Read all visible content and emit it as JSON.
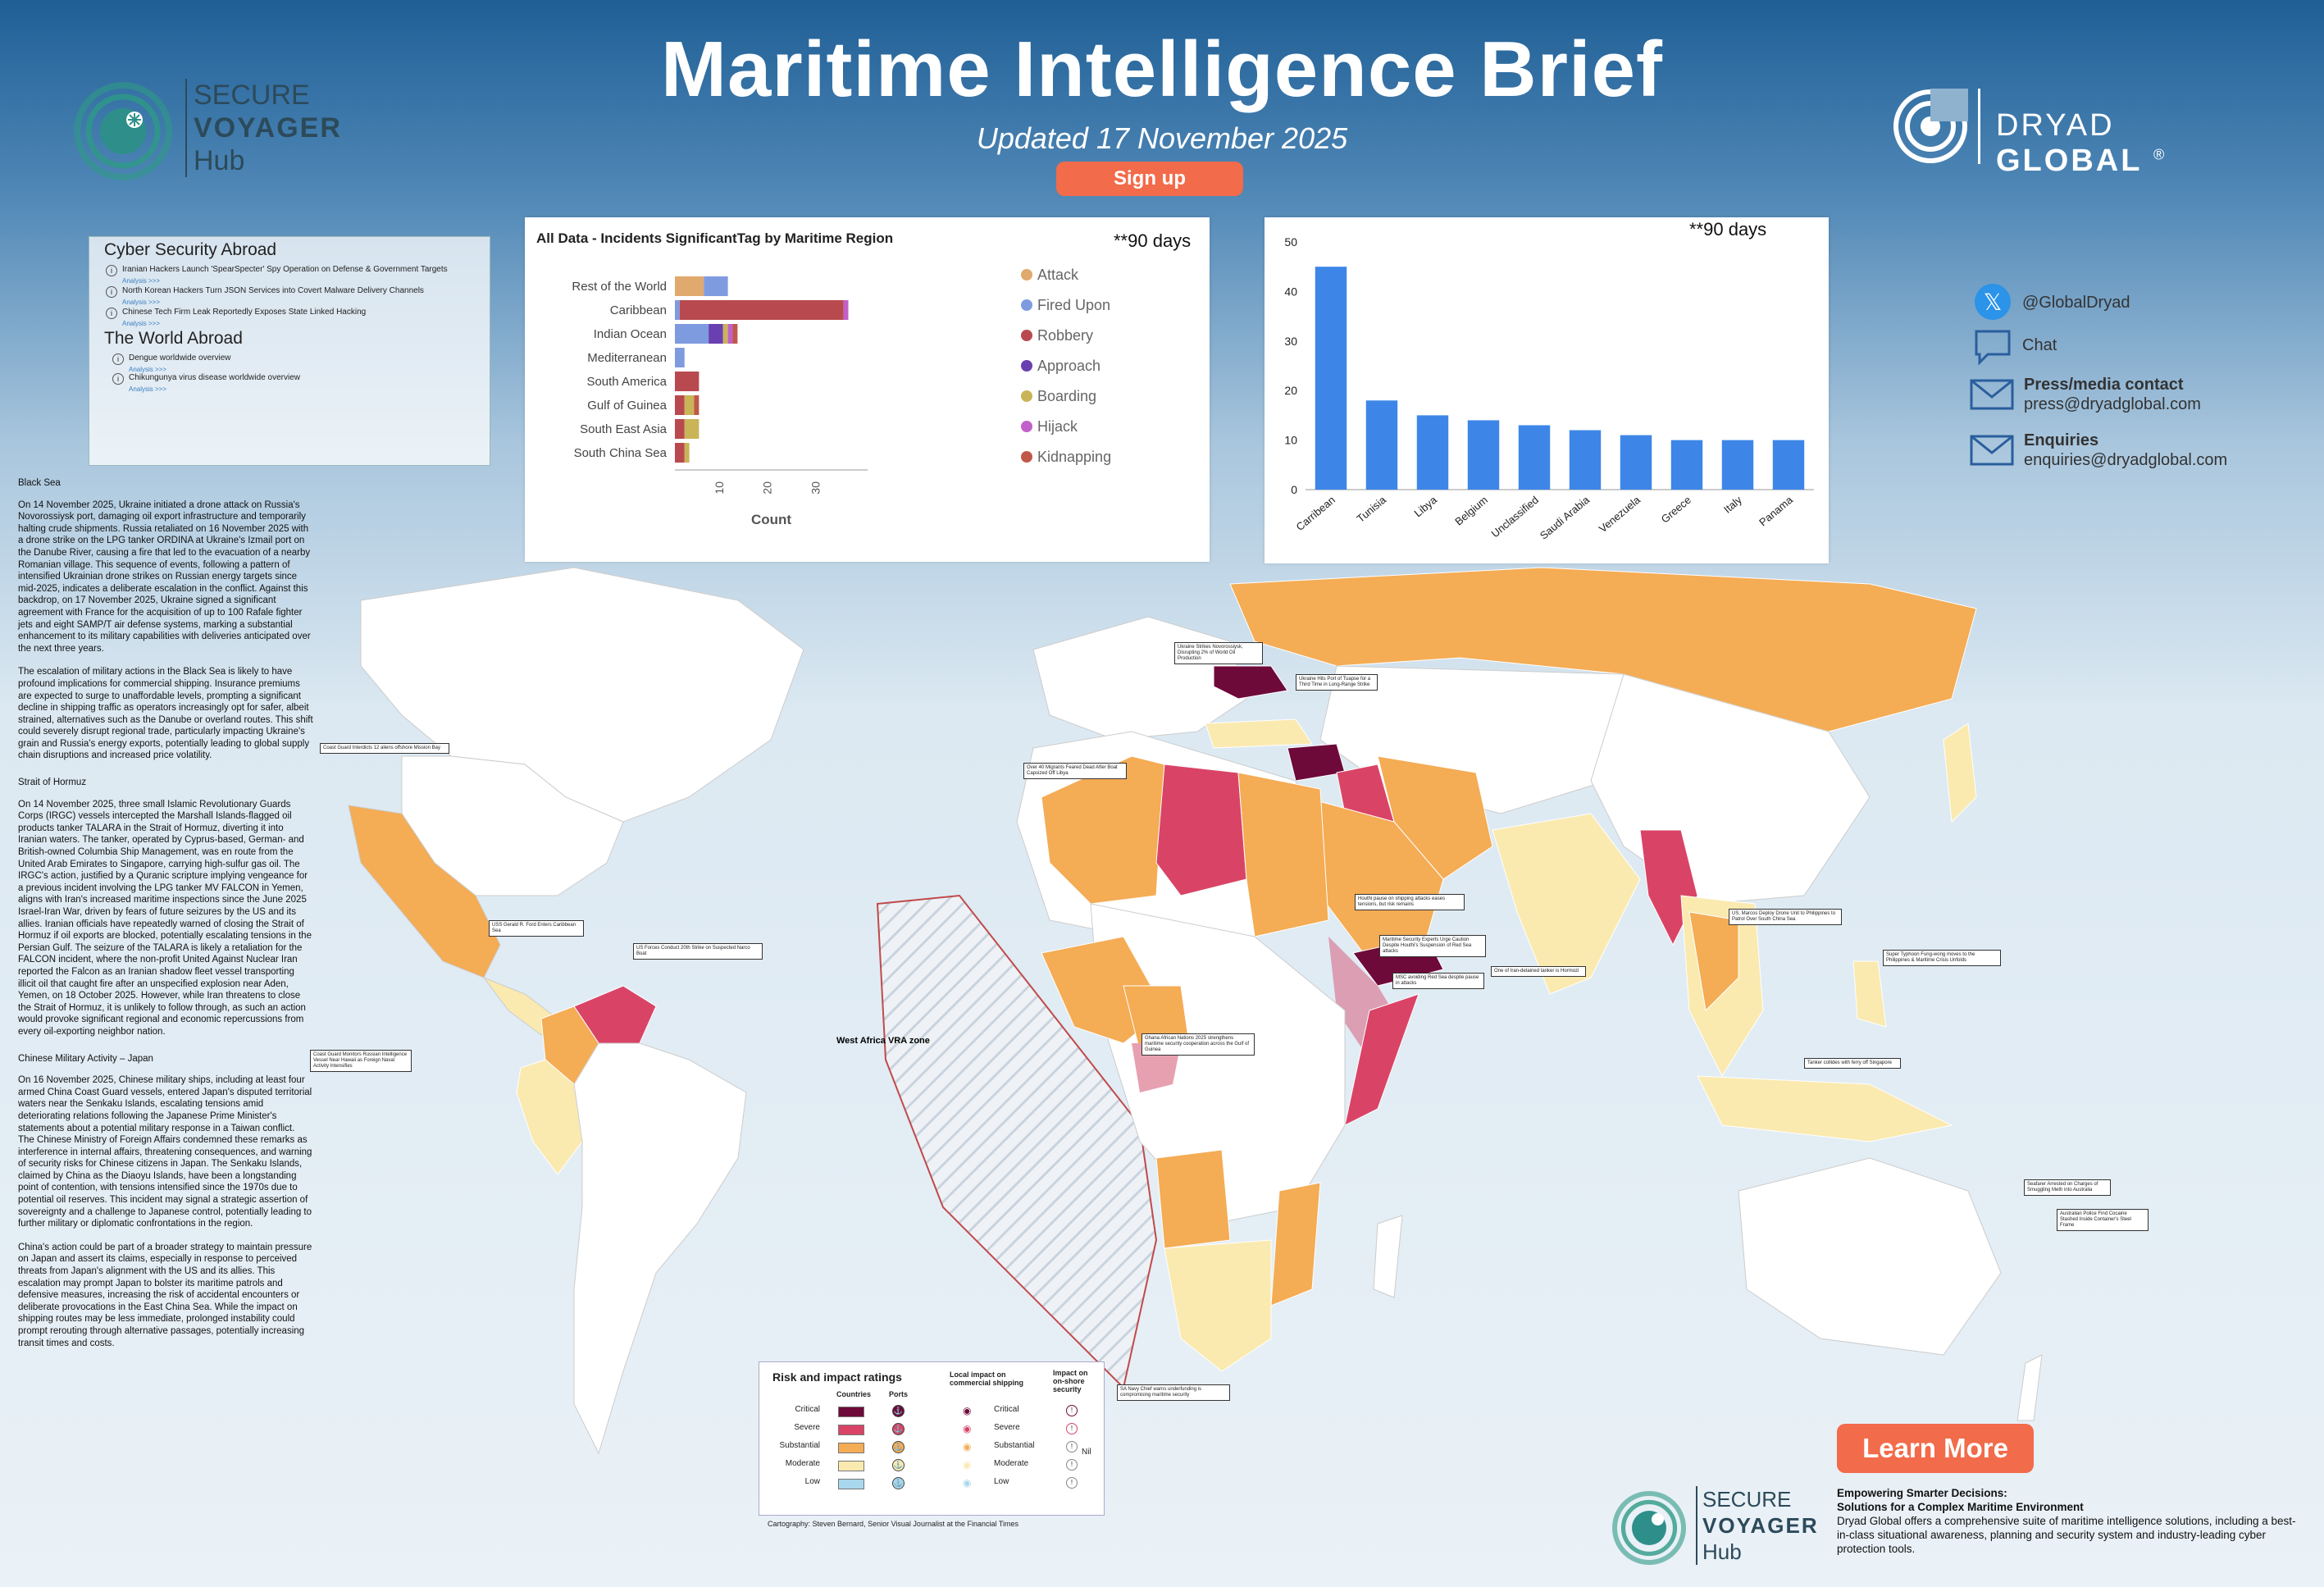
{
  "header": {
    "title": "Maritime Intelligence Brief",
    "updated": "Updated 17 November 2025",
    "signup": "Sign up"
  },
  "logos": {
    "secure": "SECURE",
    "voyager": "VOYAGER",
    "hub": "Hub",
    "dryad_a": "DRYAD",
    "dryad_b": "GLOBAL",
    "registered": "®"
  },
  "cyber_panel": {
    "heading1": "Cyber Security Abroad",
    "items1": [
      {
        "text": "Iranian Hackers Launch 'SpearSpecter' Spy Operation on Defense & Government Targets",
        "link": "Analysis >>>"
      },
      {
        "text": "North Korean Hackers Turn JSON Services into Covert Malware Delivery Channels",
        "link": "Analysis >>>"
      },
      {
        "text": "Chinese Tech Firm Leak Reportedly Exposes State Linked Hacking",
        "link": "Analysis >>>"
      }
    ],
    "heading2": "The World Abroad",
    "items2": [
      {
        "text": "Dengue worldwide overview",
        "link": "Analysis >>>"
      },
      {
        "text": "Chikungunya virus disease worldwide overview",
        "link": "Analysis >>>"
      }
    ]
  },
  "chart_data": [
    {
      "type": "bar",
      "orientation": "horizontal",
      "stacked": true,
      "title": "All Data - Incidents SignificantTag by Maritime Region",
      "note": "**90 days",
      "xlabel": "Count",
      "ylabel": "",
      "xlim": [
        0,
        40
      ],
      "xticks": [
        10,
        20,
        30
      ],
      "categories": [
        "Rest of the World",
        "Caribbean",
        "Indian Ocean",
        "Mediterranean",
        "South America",
        "Gulf of Guinea",
        "South East Asia",
        "South China Sea"
      ],
      "series": [
        {
          "name": "Attack",
          "color": "#e0a96d",
          "values": [
            6,
            0,
            0,
            0,
            0,
            0,
            0,
            0
          ]
        },
        {
          "name": "Fired Upon",
          "color": "#7f9be0",
          "values": [
            5,
            1,
            7,
            2,
            0,
            0,
            0,
            0
          ]
        },
        {
          "name": "Robbery",
          "color": "#b84a4f",
          "values": [
            0,
            34,
            0,
            0,
            5,
            2,
            2,
            2
          ]
        },
        {
          "name": "Approach",
          "color": "#6a3fb0",
          "values": [
            0,
            0,
            3,
            0,
            0,
            0,
            0,
            0
          ]
        },
        {
          "name": "Boarding",
          "color": "#c9b458",
          "values": [
            0,
            0,
            1,
            0,
            0,
            2,
            3,
            1
          ]
        },
        {
          "name": "Hijack",
          "color": "#c160c8",
          "values": [
            0,
            1,
            1,
            0,
            0,
            0,
            0,
            0
          ]
        },
        {
          "name": "Kidnapping",
          "color": "#c0584a",
          "values": [
            0,
            0,
            1,
            0,
            0,
            1,
            0,
            0
          ]
        }
      ],
      "legend": "right"
    },
    {
      "type": "bar",
      "title": "",
      "note": "**90 days",
      "xlabel": "",
      "ylabel": "",
      "ylim": [
        0,
        50
      ],
      "yticks": [
        0,
        10,
        20,
        30,
        40,
        50
      ],
      "categories": [
        "Carribean",
        "Tunisia",
        "Libya",
        "Belgium",
        "Unclassified",
        "Saudi Arabia",
        "Venezuela",
        "Greece",
        "Italy",
        "Panama"
      ],
      "values": [
        45,
        18,
        15,
        14,
        13,
        12,
        11,
        10,
        10,
        10
      ],
      "color": "#3d86e8"
    }
  ],
  "social": {
    "twitter": "@GlobalDryad",
    "chat": "Chat",
    "press_label": "Press/media contact",
    "press_email": "press@dryadglobal.com",
    "enq_label": "Enquiries",
    "enq_email": "enquiries@dryadglobal.com"
  },
  "left_text": {
    "h1": "Black Sea",
    "p1": "On 14 November 2025, Ukraine initiated a drone attack on Russia's Novorossiysk port, damaging oil export infrastructure and temporarily halting crude shipments. Russia retaliated on 16 November 2025 with a drone strike on the LPG tanker ORDINA at Ukraine's Izmail port on the Danube River, causing a fire that led to the evacuation of a nearby Romanian village. This sequence of events, following a pattern of intensified Ukrainian drone strikes on Russian energy targets since mid-2025, indicates a deliberate escalation in the conflict. Against this backdrop, on 17 November 2025, Ukraine signed a significant agreement with France for the acquisition of up to 100 Rafale fighter jets and eight SAMP/T air defense systems, marking a substantial enhancement to its military capabilities with deliveries anticipated over the next three years.",
    "p2": "The escalation of military actions in the Black Sea is likely to have profound implications for commercial shipping. Insurance premiums are expected to surge to unaffordable levels, prompting a significant decline in shipping traffic as operators increasingly opt for safer, albeit strained, alternatives such as the Danube or overland routes. This shift could severely disrupt regional trade, particularly impacting Ukraine's grain and Russia's energy exports, potentially leading to global supply chain disruptions and increased price volatility.",
    "h2": "Strait of Hormuz",
    "p3": "On 14 November 2025, three small Islamic Revolutionary Guards Corps (IRGC) vessels intercepted the Marshall Islands-flagged oil products tanker TALARA in the Strait of Hormuz, diverting it into Iranian waters. The tanker, operated by Cyprus-based, German- and British-owned Columbia Ship Management, was en route from the United Arab Emirates to Singapore, carrying high-sulfur gas oil. The IRGC's action, justified by a Quranic scripture implying vengeance for a previous incident involving the LPG tanker MV FALCON in Yemen, aligns with Iran's increased maritime inspections since the June 2025 Israel-Iran War, driven by fears of future seizures by the US and its allies. Iranian officials have repeatedly warned of closing the Strait of Hormuz if oil exports are blocked, potentially escalating tensions in the Persian Gulf. The seizure of the TALARA is likely a retaliation for the FALCON incident, where the non-profit United Against Nuclear Iran reported the Falcon as an Iranian shadow fleet vessel transporting illicit oil that caught fire after an unspecified explosion near Aden, Yemen, on 18 October 2025. However, while Iran threatens to close the Strait of Hormuz, it is unlikely to follow through, as such an action would provoke significant regional and economic repercussions from every oil-exporting neighbor nation.",
    "h3": "Chinese Military Activity – Japan",
    "p4": "On 16 November 2025, Chinese military ships, including at least four armed China Coast Guard vessels, entered Japan's disputed territorial waters near the Senkaku Islands, escalating tensions amid deteriorating relations following the Japanese Prime Minister's statements about a potential military response in a Taiwan conflict. The Chinese Ministry of Foreign Affairs condemned these remarks as interference in internal affairs, threatening consequences, and warning of security risks for Chinese citizens in Japan. The Senkaku Islands, claimed by China as the Diaoyu Islands, have been a longstanding point of contention, with tensions intensified since the 1970s due to potential oil reserves. This incident may signal a strategic assertion of sovereignty and a challenge to Japanese control, potentially leading to further military or diplomatic confrontations in the region.",
    "p5": "China's action could be part of a broader strategy to maintain pressure on Japan and assert its claims, especially in response to perceived threats from Japan's alignment with the US and its allies. This escalation may prompt Japan to bolster its maritime patrols and defensive measures, increasing the risk of accidental encounters or deliberate provocations in the East China Sea. While the impact on shipping routes may be less immediate, prolonged instability could prompt rerouting through alternative passages, potentially increasing transit times and costs."
  },
  "legend": {
    "title": "Risk and impact ratings",
    "col_countries": "Countries",
    "col_ports": "Ports",
    "col_local": "Local impact on commercial shipping",
    "col_onshore": "Impact on on-shore security",
    "levels": [
      "Critical",
      "Severe",
      "Substantial",
      "Moderate",
      "Low"
    ],
    "level_colors": [
      "#6e0a3a",
      "#d94466",
      "#f4ac55",
      "#faeab0",
      "#a8d7ee"
    ],
    "nil": "Nil",
    "credit": "Cartography: Steven Bernard, Senior Visual Journalist at the Financial Times"
  },
  "map_labels": {
    "wa_zone": "West Africa VRA zone",
    "callouts": [
      "Ukraine Strikes Novorossiysk, Disrupting 2% of World Oil Production",
      "Ukraine Hits Port of Tuapse for a Third Time in Long-Range Strike",
      "Over 40 Migrants Feared Dead After Boat Capsized Off Libya",
      "Coast Guard Interdicts 12 aliens offshore Mission Bay",
      "US Forces Conduct 20th Strike on Suspected Narco Boat",
      "USS Gerald R. Ford Enters Caribbean Sea",
      "Coast Guard Monitors Russian Intelligence Vessel Near Hawaii as Foreign Naval Activity Intensifies",
      "Houthi pause on shipping attacks eases tensions, but risk remains",
      "Maritime Security Experts Urge Caution Despite Houthi's Suspension of Red Sea attacks",
      "One of Iran-detained tanker is Hormozi",
      "MSC avoiding Red Sea despite pause in attacks",
      "Ghana African Nations 2025 strengthens maritime security cooperation across the Gulf of Guinea",
      "US, Marcos Deploy Drone Unit to Philippines to Patrol Over South China Sea",
      "Super Typhoon Fung-wong moves to the Philippines & Maritime Crisis Unfolds",
      "Tanker collides with ferry off Singapore",
      "Seafarer Arrested on Charges of Smuggling Meth into Australia",
      "Australian Police Find Cocaine Stashed Inside Container's Steel Frame",
      "SA Navy Chief warns underfunding is compromising maritime security"
    ]
  },
  "cta": {
    "learn_more": "Learn More",
    "emp1": "Empowering Smarter Decisions:",
    "emp2": "Solutions for a Complex Maritime Environment",
    "emp3": "Dryad Global offers a comprehensive suite of maritime intelligence solutions, including a best-in-class situational awareness, planning and security system and industry-leading cyber protection tools."
  }
}
